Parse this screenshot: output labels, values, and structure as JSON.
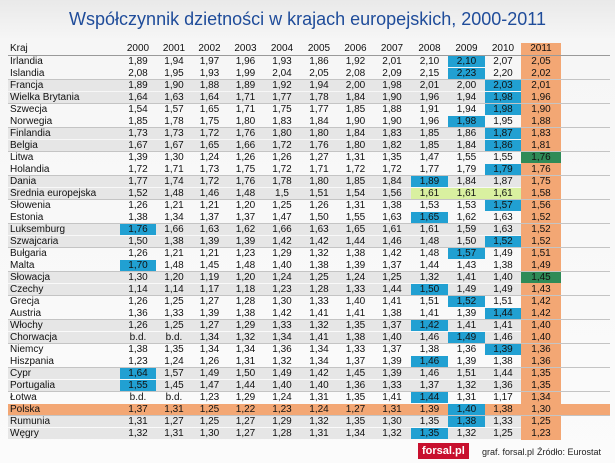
{
  "title": "Współczynnik dzietności w krajach europejskich, 2000-2011",
  "colors": {
    "highlight_2011": "#f3a774",
    "highlight_poland": "#f3a774",
    "high_cell": "#21a0d2",
    "eu_average": "#d9f0a0",
    "max_value": "#2e8b57",
    "row_alt": "#e6e6e6"
  },
  "table": {
    "country_header": "Kraj",
    "years": [
      "2000",
      "2001",
      "2002",
      "2003",
      "2004",
      "2005",
      "2006",
      "2007",
      "2008",
      "2009",
      "2010",
      "2011"
    ],
    "rows": [
      {
        "country": "Irlandia",
        "values": [
          "1,89",
          "1,94",
          "1,97",
          "1,96",
          "1,93",
          "1,86",
          "1,92",
          "2,01",
          "2,10",
          "2,10",
          "2,07",
          "2,05"
        ],
        "hl": [
          9
        ]
      },
      {
        "country": "Islandia",
        "values": [
          "2,08",
          "1,95",
          "1,93",
          "1,99",
          "2,04",
          "2,05",
          "2,08",
          "2,09",
          "2,15",
          "2,23",
          "2,20",
          "2,02"
        ],
        "hl": [
          9
        ]
      },
      {
        "country": "Francja",
        "values": [
          "1,89",
          "1,90",
          "1,88",
          "1,89",
          "1,92",
          "1,94",
          "2,00",
          "1,98",
          "2,01",
          "2,00",
          "2,03",
          "2,01"
        ],
        "hl": [
          10
        ]
      },
      {
        "country": "Wielka Brytania",
        "values": [
          "1,64",
          "1,63",
          "1,64",
          "1,71",
          "1,77",
          "1,78",
          "1,84",
          "1,90",
          "1,96",
          "1,94",
          "1,98",
          "1,96"
        ],
        "hl": [
          10
        ]
      },
      {
        "country": "Szwecja",
        "values": [
          "1,54",
          "1,57",
          "1,65",
          "1,71",
          "1,75",
          "1,77",
          "1,85",
          "1,88",
          "1,91",
          "1,94",
          "1,98",
          "1,90"
        ],
        "hl": [
          10
        ]
      },
      {
        "country": "Norwegia",
        "values": [
          "1,85",
          "1,78",
          "1,75",
          "1,80",
          "1,83",
          "1,84",
          "1,90",
          "1,90",
          "1,96",
          "1,98",
          "1,95",
          "1,88"
        ],
        "hl": [
          9
        ]
      },
      {
        "country": "Finlandia",
        "values": [
          "1,73",
          "1,73",
          "1,72",
          "1,76",
          "1,80",
          "1,80",
          "1,84",
          "1,83",
          "1,85",
          "1,86",
          "1,87",
          "1,83"
        ],
        "hl": [
          10
        ]
      },
      {
        "country": "Belgia",
        "values": [
          "1,67",
          "1,67",
          "1,65",
          "1,66",
          "1,72",
          "1,76",
          "1,80",
          "1,82",
          "1,85",
          "1,84",
          "1,86",
          "1,81"
        ],
        "hl": [
          10
        ]
      },
      {
        "country": "Litwa",
        "values": [
          "1,39",
          "1,30",
          "1,24",
          "1,26",
          "1,26",
          "1,27",
          "1,31",
          "1,35",
          "1,47",
          "1,55",
          "1,55",
          "1,76"
        ],
        "hl": [],
        "max": [
          11
        ]
      },
      {
        "country": "Holandia",
        "values": [
          "1,72",
          "1,71",
          "1,73",
          "1,75",
          "1,72",
          "1,71",
          "1,72",
          "1,72",
          "1,77",
          "1,79",
          "1,79",
          "1,76"
        ],
        "hl": [
          10
        ]
      },
      {
        "country": "Dania",
        "values": [
          "1,77",
          "1,74",
          "1,72",
          "1,76",
          "1,78",
          "1,80",
          "1,85",
          "1,84",
          "1,89",
          "1,84",
          "1,87",
          "1,75"
        ],
        "hl": [
          8
        ]
      },
      {
        "country": "Średnia europejska",
        "values": [
          "1,52",
          "1,48",
          "1,46",
          "1,48",
          "1,5",
          "1,51",
          "1,54",
          "1,56",
          "1,61",
          "1,61",
          "1,61",
          "1,58"
        ],
        "hl": [],
        "eu": true
      },
      {
        "country": "Słowenia",
        "values": [
          "1,26",
          "1,21",
          "1,21",
          "1,20",
          "1,25",
          "1,26",
          "1,31",
          "1,38",
          "1,53",
          "1,53",
          "1,57",
          "1,56"
        ],
        "hl": [
          10
        ]
      },
      {
        "country": "Estonia",
        "values": [
          "1,38",
          "1,34",
          "1,37",
          "1,37",
          "1,47",
          "1,50",
          "1,55",
          "1,63",
          "1,65",
          "1,62",
          "1,63",
          "1,52"
        ],
        "hl": [
          8
        ]
      },
      {
        "country": "Luksemburg",
        "values": [
          "1,76",
          "1,66",
          "1,63",
          "1,62",
          "1,66",
          "1,63",
          "1,65",
          "1,61",
          "1,61",
          "1,59",
          "1,63",
          "1,52"
        ],
        "hl": [
          0
        ]
      },
      {
        "country": "Szwajcaria",
        "values": [
          "1,50",
          "1,38",
          "1,39",
          "1,39",
          "1,42",
          "1,42",
          "1,44",
          "1,46",
          "1,48",
          "1,50",
          "1,52",
          "1,52"
        ],
        "hl": [
          10
        ]
      },
      {
        "country": "Bułgaria",
        "values": [
          "1,26",
          "1,21",
          "1,21",
          "1,23",
          "1,29",
          "1,32",
          "1,38",
          "1,42",
          "1,48",
          "1,57",
          "1,49",
          "1,51"
        ],
        "hl": [
          9
        ]
      },
      {
        "country": "Malta",
        "values": [
          "1,70",
          "1,48",
          "1,45",
          "1,48",
          "1,40",
          "1,38",
          "1,39",
          "1,37",
          "1,44",
          "1,43",
          "1,38",
          "1,49"
        ],
        "hl": [
          0
        ]
      },
      {
        "country": "Słowacja",
        "values": [
          "1,30",
          "1,20",
          "1,19",
          "1,20",
          "1,24",
          "1,25",
          "1,24",
          "1,25",
          "1,32",
          "1,41",
          "1,40",
          "1,45"
        ],
        "hl": [],
        "max": [
          11
        ]
      },
      {
        "country": "Czechy",
        "values": [
          "1,14",
          "1,14",
          "1,17",
          "1,18",
          "1,23",
          "1,28",
          "1,33",
          "1,44",
          "1,50",
          "1,49",
          "1,49",
          "1,43"
        ],
        "hl": [
          8
        ]
      },
      {
        "country": "Grecja",
        "values": [
          "1,26",
          "1,25",
          "1,27",
          "1,28",
          "1,30",
          "1,33",
          "1,40",
          "1,41",
          "1,51",
          "1,52",
          "1,51",
          "1,42"
        ],
        "hl": [
          9
        ]
      },
      {
        "country": "Austria",
        "values": [
          "1,36",
          "1,33",
          "1,39",
          "1,38",
          "1,42",
          "1,41",
          "1,41",
          "1,38",
          "1,41",
          "1,39",
          "1,44",
          "1,42"
        ],
        "hl": [
          10
        ]
      },
      {
        "country": "Włochy",
        "values": [
          "1,26",
          "1,25",
          "1,27",
          "1,29",
          "1,33",
          "1,32",
          "1,35",
          "1,37",
          "1,42",
          "1,41",
          "1,41",
          "1,40"
        ],
        "hl": [
          8
        ]
      },
      {
        "country": "Chorwacja",
        "values": [
          "b.d.",
          "b.d.",
          "1,34",
          "1,32",
          "1,34",
          "1,41",
          "1,38",
          "1,40",
          "1,46",
          "1,49",
          "1,46",
          "1,40"
        ],
        "hl": [
          9
        ]
      },
      {
        "country": "Niemcy",
        "values": [
          "1,38",
          "1,35",
          "1,34",
          "1,34",
          "1,36",
          "1,34",
          "1,33",
          "1,37",
          "1,38",
          "1,36",
          "1,39",
          "1,36"
        ],
        "hl": [
          10
        ]
      },
      {
        "country": "Hiszpania",
        "values": [
          "1,23",
          "1,24",
          "1,26",
          "1,31",
          "1,32",
          "1,34",
          "1,37",
          "1,39",
          "1,46",
          "1,39",
          "1,38",
          "1,36"
        ],
        "hl": [
          8
        ]
      },
      {
        "country": "Cypr",
        "values": [
          "1,64",
          "1,57",
          "1,49",
          "1,50",
          "1,49",
          "1,42",
          "1,45",
          "1,39",
          "1,46",
          "1,51",
          "1,44",
          "1,35"
        ],
        "hl": [
          0
        ]
      },
      {
        "country": "Portugalia",
        "values": [
          "1,55",
          "1,45",
          "1,47",
          "1,44",
          "1,40",
          "1,40",
          "1,36",
          "1,33",
          "1,37",
          "1,32",
          "1,36",
          "1,35"
        ],
        "hl": [
          0
        ]
      },
      {
        "country": "Łotwa",
        "values": [
          "b.d.",
          "b.d.",
          "1,23",
          "1,29",
          "1,24",
          "1,31",
          "1,35",
          "1,41",
          "1,44",
          "1,31",
          "1,17",
          "1,34"
        ],
        "hl": [
          8
        ]
      },
      {
        "country": "Polska",
        "values": [
          "1,37",
          "1,31",
          "1,25",
          "1,22",
          "1,23",
          "1,24",
          "1,27",
          "1,31",
          "1,39",
          "1,40",
          "1,38",
          "1,30"
        ],
        "hl": [
          9
        ],
        "poland": true
      },
      {
        "country": "Rumunia",
        "values": [
          "1,31",
          "1,27",
          "1,25",
          "1,27",
          "1,29",
          "1,32",
          "1,35",
          "1,30",
          "1,35",
          "1,38",
          "1,33",
          "1,25"
        ],
        "hl": [
          9
        ]
      },
      {
        "country": "Węgry",
        "values": [
          "1,32",
          "1,31",
          "1,30",
          "1,27",
          "1,28",
          "1,31",
          "1,34",
          "1,32",
          "1,35",
          "1,32",
          "1,25",
          "1,23"
        ],
        "hl": [
          8
        ]
      }
    ]
  },
  "footer": {
    "logo": "forsal.pl",
    "credit": "graf. forsal.pl",
    "source": "Źródło: Eurostat"
  }
}
